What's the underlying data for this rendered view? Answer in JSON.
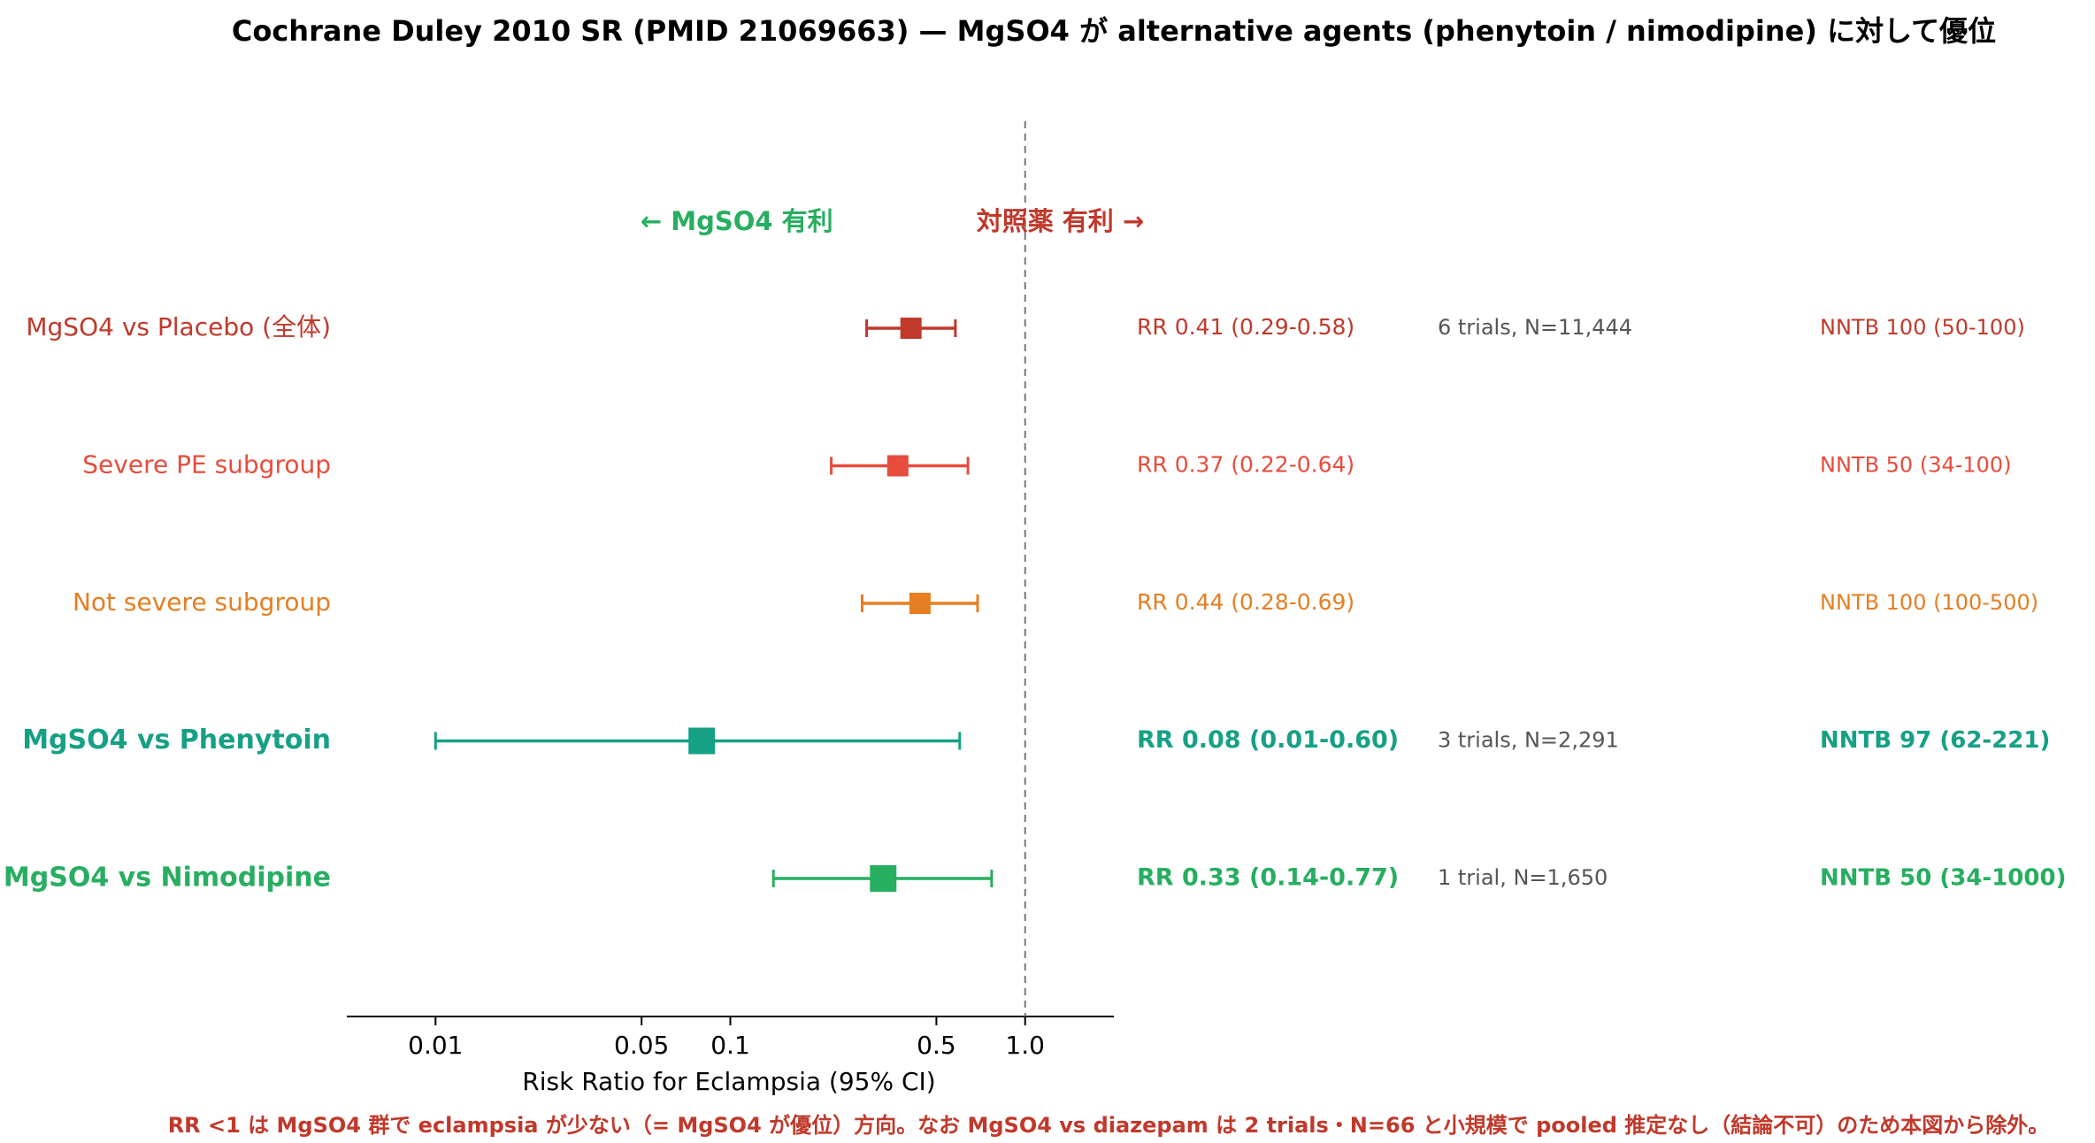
{
  "chart_data": {
    "type": "forest",
    "title": "Cochrane Duley 2010 SR (PMID 21069663) — MgSO4 が alternative agents (phenytoin / nimodipine) に対して優位",
    "x_label": "Risk Ratio for Eclampsia (95% CI)",
    "log_x": true,
    "xlim": [
      0.005,
      2
    ],
    "xticks": [
      0.01,
      0.05,
      0.1,
      0.5,
      {
        "value": 1,
        "label": "1.0"
      }
    ],
    "ref_line": 1,
    "favors_left": "← MgSO4 有利",
    "favors_right": "対照薬 有利 →",
    "favors_color": [
      "#27ae60",
      "#c0392b"
    ],
    "rows": [
      {
        "label": "MgSO4 vs Placebo (全体)",
        "color": "#c0392b",
        "bold": false,
        "rr": 0.41,
        "lo": 0.29,
        "hi": 0.58,
        "rr_label": "RR 0.41 (0.29-0.58)",
        "trials": "6 trials, N=11,444",
        "nntb": "NNTB 100 (50-100)"
      },
      {
        "label": "Severe PE subgroup",
        "color": "#e74c3c",
        "bold": false,
        "rr": 0.37,
        "lo": 0.22,
        "hi": 0.64,
        "rr_label": "RR 0.37 (0.22-0.64)",
        "trials": null,
        "nntb": "NNTB 50 (34-100)"
      },
      {
        "label": "Not severe subgroup",
        "color": "#e67e22",
        "bold": false,
        "rr": 0.44,
        "lo": 0.28,
        "hi": 0.69,
        "rr_label": "RR 0.44 (0.28-0.69)",
        "trials": null,
        "nntb": "NNTB 100 (100-500)"
      },
      {
        "label": "MgSO4 vs Phenytoin",
        "color": "#16a085",
        "bold": true,
        "rr": 0.08,
        "lo": 0.01,
        "hi": 0.6,
        "rr_label": "RR 0.08 (0.01-0.60)",
        "trials": "3 trials, N=2,291",
        "nntb": "NNTB 97 (62-221)"
      },
      {
        "label": "MgSO4 vs Nimodipine",
        "color": "#27ae60",
        "bold": true,
        "rr": 0.33,
        "lo": 0.14,
        "hi": 0.77,
        "rr_label": "RR 0.33 (0.14-0.77)",
        "trials": "1 trial, N=1,650",
        "nntb": "NNTB 50 (34-1000)"
      }
    ],
    "footnote": "RR <1 は MgSO4 群で eclampsia が少ない（= MgSO4 が優位）方向。なお MgSO4 vs diazepam は 2 trials・N=66 と小規模で pooled 推定なし（結論不可）のため本図から除外。"
  }
}
